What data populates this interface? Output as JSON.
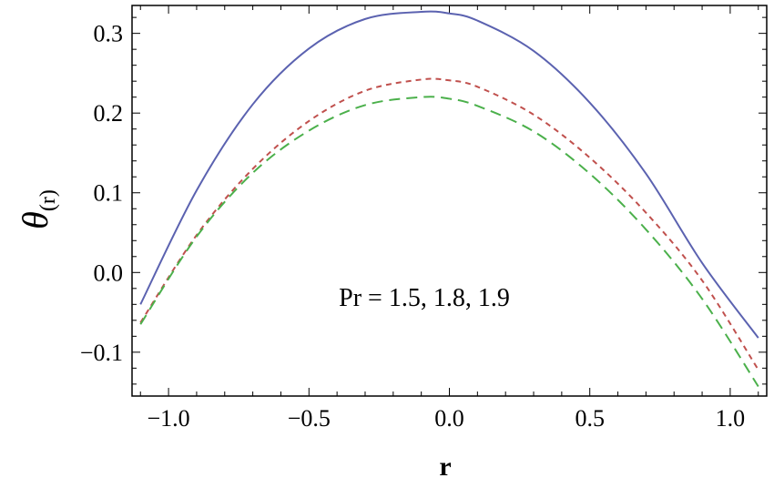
{
  "chart_data": {
    "type": "line",
    "title": "",
    "xlabel": "r",
    "ylabel": "θ",
    "ylabel_sub": "(r)",
    "xlim": [
      -1.13,
      1.13
    ],
    "ylim": [
      -0.155,
      0.335
    ],
    "x_ticks": [
      -1.0,
      -0.5,
      0.0,
      0.5,
      1.0
    ],
    "x_tick_labels": [
      "−1.0",
      "−0.5",
      "0.0",
      "0.5",
      "1.0"
    ],
    "y_ticks": [
      -0.1,
      0.0,
      0.1,
      0.2,
      0.3
    ],
    "y_tick_labels": [
      "−0.1",
      "0.0",
      "0.1",
      "0.2",
      "0.3"
    ],
    "grid": false,
    "annotation": "Pr = 1.5, 1.8, 1.9",
    "series": [
      {
        "name": "Pr = 1.5",
        "color": "#5b62b0",
        "dash": "solid",
        "x": [
          -1.1,
          -0.9,
          -0.7,
          -0.5,
          -0.3,
          -0.1,
          0.0,
          0.1,
          0.3,
          0.5,
          0.7,
          0.9,
          1.1
        ],
        "y": [
          -0.04,
          0.103,
          0.211,
          0.281,
          0.318,
          0.327,
          0.325,
          0.316,
          0.278,
          0.213,
          0.124,
          0.012,
          -0.082
        ]
      },
      {
        "name": "Pr = 1.8",
        "color": "#c0504d",
        "dash": "short-dash",
        "x": [
          -1.1,
          -0.9,
          -0.7,
          -0.5,
          -0.3,
          -0.1,
          0.0,
          0.1,
          0.3,
          0.5,
          0.7,
          0.9,
          1.1
        ],
        "y": [
          -0.063,
          0.047,
          0.13,
          0.19,
          0.228,
          0.242,
          0.241,
          0.233,
          0.198,
          0.144,
          0.075,
          -0.01,
          -0.122
        ]
      },
      {
        "name": "Pr = 1.9",
        "color": "#4bb04b",
        "dash": "long-dash",
        "x": [
          -1.1,
          -0.9,
          -0.7,
          -0.5,
          -0.3,
          -0.1,
          0.0,
          0.1,
          0.3,
          0.5,
          0.7,
          0.9,
          1.1
        ],
        "y": [
          -0.065,
          0.045,
          0.125,
          0.178,
          0.21,
          0.22,
          0.218,
          0.209,
          0.177,
          0.124,
          0.054,
          -0.033,
          -0.143
        ]
      }
    ]
  }
}
